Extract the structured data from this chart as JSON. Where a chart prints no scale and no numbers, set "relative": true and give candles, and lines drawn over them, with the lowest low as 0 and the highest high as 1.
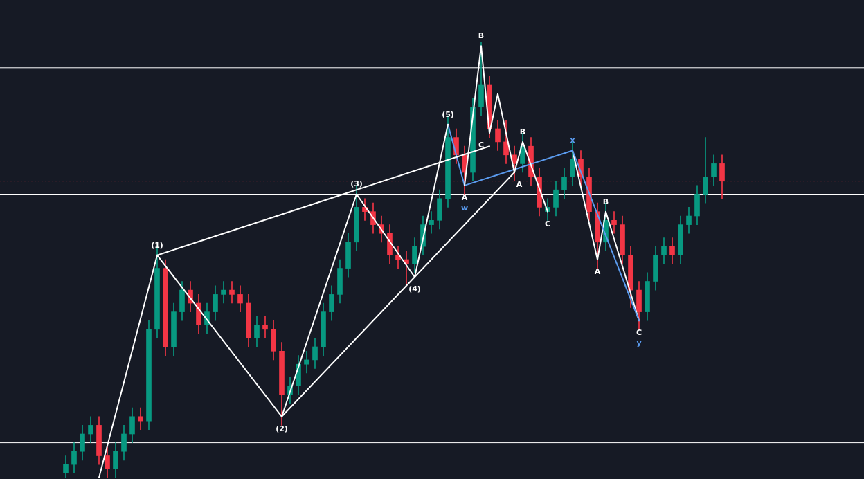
{
  "chart_data": {
    "type": "candlestick",
    "relative": true,
    "legend": false,
    "categories": [
      null,
      null,
      null,
      null,
      null,
      null,
      null,
      null,
      null,
      null,
      null,
      null,
      null,
      null,
      null,
      null,
      null,
      null,
      null,
      null,
      null,
      null,
      null,
      null,
      null,
      null,
      null,
      null,
      null,
      null,
      null,
      null,
      null,
      null,
      null,
      null,
      null,
      null,
      null,
      null,
      null,
      null,
      null,
      null,
      null,
      null,
      null,
      null,
      null,
      null,
      null,
      null,
      null,
      null,
      null,
      null,
      null,
      null,
      null,
      null,
      null,
      null,
      null,
      null,
      null,
      null,
      null,
      null,
      null,
      null,
      null,
      null,
      null,
      null,
      null,
      null,
      null,
      null,
      null,
      null
    ],
    "ohlc": [
      [
        0.01,
        0.05,
        0,
        0.03
      ],
      [
        0.03,
        0.08,
        0.01,
        0.06
      ],
      [
        0.06,
        0.12,
        0.04,
        0.1
      ],
      [
        0.1,
        0.14,
        0.08,
        0.12
      ],
      [
        0.12,
        0.14,
        0.03,
        0.05
      ],
      [
        0.05,
        0.07,
        0,
        0.02
      ],
      [
        0.02,
        0.08,
        0,
        0.06
      ],
      [
        0.06,
        0.12,
        0.04,
        0.1
      ],
      [
        0.1,
        0.16,
        0.08,
        0.14
      ],
      [
        0.14,
        0.16,
        0.11,
        0.13
      ],
      [
        0.13,
        0.36,
        0.11,
        0.34
      ],
      [
        0.34,
        0.53,
        0.32,
        0.48
      ],
      [
        0.48,
        0.5,
        0.28,
        0.3
      ],
      [
        0.3,
        0.4,
        0.28,
        0.38
      ],
      [
        0.38,
        0.45,
        0.36,
        0.43
      ],
      [
        0.43,
        0.45,
        0.38,
        0.4
      ],
      [
        0.4,
        0.42,
        0.33,
        0.35
      ],
      [
        0.35,
        0.4,
        0.33,
        0.38
      ],
      [
        0.38,
        0.44,
        0.36,
        0.42
      ],
      [
        0.42,
        0.45,
        0.4,
        0.43
      ],
      [
        0.43,
        0.45,
        0.4,
        0.42
      ],
      [
        0.42,
        0.44,
        0.38,
        0.4
      ],
      [
        0.4,
        0.42,
        0.3,
        0.32
      ],
      [
        0.32,
        0.37,
        0.3,
        0.35
      ],
      [
        0.35,
        0.37,
        0.32,
        0.34
      ],
      [
        0.34,
        0.36,
        0.27,
        0.29
      ],
      [
        0.29,
        0.31,
        0.12,
        0.19
      ],
      [
        0.19,
        0.23,
        0.17,
        0.21
      ],
      [
        0.21,
        0.28,
        0.19,
        0.26
      ],
      [
        0.26,
        0.29,
        0.24,
        0.27
      ],
      [
        0.27,
        0.32,
        0.25,
        0.3
      ],
      [
        0.3,
        0.4,
        0.28,
        0.38
      ],
      [
        0.38,
        0.44,
        0.36,
        0.42
      ],
      [
        0.42,
        0.5,
        0.4,
        0.48
      ],
      [
        0.48,
        0.56,
        0.46,
        0.54
      ],
      [
        0.54,
        0.67,
        0.52,
        0.62
      ],
      [
        0.62,
        0.64,
        0.59,
        0.61
      ],
      [
        0.61,
        0.63,
        0.56,
        0.58
      ],
      [
        0.58,
        0.6,
        0.54,
        0.56
      ],
      [
        0.56,
        0.58,
        0.49,
        0.51
      ],
      [
        0.51,
        0.53,
        0.48,
        0.5
      ],
      [
        0.5,
        0.52,
        0.44,
        0.49
      ],
      [
        0.49,
        0.55,
        0.47,
        0.53
      ],
      [
        0.53,
        0.6,
        0.51,
        0.58
      ],
      [
        0.58,
        0.61,
        0.56,
        0.59
      ],
      [
        0.59,
        0.66,
        0.57,
        0.64
      ],
      [
        0.64,
        0.83,
        0.62,
        0.78
      ],
      [
        0.78,
        0.8,
        0.72,
        0.74
      ],
      [
        0.74,
        0.76,
        0.65,
        0.7
      ],
      [
        0.7,
        0.87,
        0.68,
        0.85
      ],
      [
        0.85,
        1,
        0.83,
        0.9
      ],
      [
        0.9,
        0.92,
        0.78,
        0.8
      ],
      [
        0.8,
        0.82,
        0.75,
        0.77
      ],
      [
        0.77,
        0.82,
        0.72,
        0.74
      ],
      [
        0.74,
        0.76,
        0.68,
        0.72
      ],
      [
        0.72,
        0.79,
        0.7,
        0.76
      ],
      [
        0.76,
        0.78,
        0.67,
        0.69
      ],
      [
        0.69,
        0.71,
        0.6,
        0.62
      ],
      [
        0.61,
        0.64,
        0.59,
        0.62
      ],
      [
        0.62,
        0.68,
        0.6,
        0.66
      ],
      [
        0.66,
        0.71,
        0.64,
        0.69
      ],
      [
        0.69,
        0.77,
        0.67,
        0.73
      ],
      [
        0.73,
        0.75,
        0.67,
        0.69
      ],
      [
        0.69,
        0.71,
        0.59,
        0.61
      ],
      [
        0.61,
        0.63,
        0.48,
        0.54
      ],
      [
        0.54,
        0.63,
        0.52,
        0.59
      ],
      [
        0.59,
        0.61,
        0.56,
        0.58
      ],
      [
        0.58,
        0.6,
        0.49,
        0.51
      ],
      [
        0.51,
        0.53,
        0.39,
        0.43
      ],
      [
        0.43,
        0.45,
        0.34,
        0.38
      ],
      [
        0.38,
        0.47,
        0.36,
        0.45
      ],
      [
        0.45,
        0.53,
        0.43,
        0.51
      ],
      [
        0.51,
        0.55,
        0.49,
        0.53
      ],
      [
        0.53,
        0.55,
        0.49,
        0.51
      ],
      [
        0.51,
        0.6,
        0.49,
        0.58
      ],
      [
        0.58,
        0.62,
        0.56,
        0.6
      ],
      [
        0.6,
        0.67,
        0.58,
        0.65
      ],
      [
        0.65,
        0.78,
        0.63,
        0.69
      ],
      [
        0.69,
        0.74,
        0.67,
        0.72
      ],
      [
        0.72,
        0.74,
        0.64,
        0.68
      ]
    ],
    "colors": [
      "#089981",
      "#089981",
      "#089981",
      "#089981",
      "#f23645",
      "#f23645",
      "#089981",
      "#089981",
      "#089981",
      "#f23645",
      "#089981",
      "#089981",
      "#f23645",
      "#089981",
      "#089981",
      "#f23645",
      "#f23645",
      "#089981",
      "#089981",
      "#089981",
      "#f23645",
      "#f23645",
      "#f23645",
      "#089981",
      "#f23645",
      "#f23645",
      "#f23645",
      "#089981",
      "#089981",
      "#089981",
      "#089981",
      "#089981",
      "#089981",
      "#089981",
      "#089981",
      "#089981",
      "#f23645",
      "#f23645",
      "#f23645",
      "#f23645",
      "#f23645",
      "#f23645",
      "#089981",
      "#089981",
      "#089981",
      "#089981",
      "#089981",
      "#f23645",
      "#f23645",
      "#089981",
      "#089981",
      "#f23645",
      "#f23645",
      "#f23645",
      "#f23645",
      "#089981",
      "#f23645",
      "#f23645",
      "#089981",
      "#089981",
      "#089981",
      "#089981",
      "#f23645",
      "#f23645",
      "#f23645",
      "#089981",
      "#f23645",
      "#f23645",
      "#f23645",
      "#f23645",
      "#089981",
      "#089981",
      "#089981",
      "#f23645",
      "#089981",
      "#089981",
      "#089981",
      "#089981",
      "#089981",
      "#f23645"
    ],
    "series": [
      {
        "type": "line",
        "color": "#ffffff",
        "values": [
          null,
          null,
          null,
          null,
          0,
          null,
          null,
          null,
          null,
          null,
          null,
          0.51,
          null,
          null,
          null,
          null,
          null,
          null,
          null,
          null,
          null,
          null,
          null,
          null,
          null,
          null,
          0.14,
          null,
          null,
          null,
          null,
          null,
          null,
          null,
          null,
          0.65,
          null,
          null,
          null,
          null,
          null,
          null,
          0.46,
          null,
          null,
          null,
          0.81,
          null,
          null,
          null,
          null,
          null,
          null,
          null,
          null,
          null,
          null,
          null,
          null,
          null,
          null,
          null,
          null,
          null,
          null,
          null,
          null,
          null,
          null,
          null,
          null,
          null,
          null,
          null,
          null,
          null,
          null,
          null,
          null,
          null
        ]
      },
      {
        "type": "line",
        "color": "#ffffff",
        "values": [
          null,
          null,
          null,
          null,
          null,
          null,
          null,
          null,
          null,
          null,
          null,
          0.51,
          null,
          null,
          null,
          null,
          null,
          null,
          null,
          null,
          null,
          null,
          null,
          null,
          null,
          null,
          null,
          null,
          null,
          null,
          null,
          null,
          null,
          null,
          null,
          null,
          null,
          null,
          null,
          null,
          null,
          null,
          null,
          null,
          null,
          null,
          null,
          null,
          null,
          null,
          null,
          0.76,
          null,
          null,
          null,
          null,
          null,
          null,
          null,
          null,
          null,
          null,
          null,
          null,
          null,
          null,
          null,
          null,
          null,
          null,
          null,
          null,
          null,
          null,
          null,
          null,
          null,
          null,
          null,
          null
        ]
      },
      {
        "type": "line",
        "color": "#ffffff",
        "values": [
          null,
          null,
          null,
          null,
          null,
          null,
          null,
          null,
          null,
          null,
          null,
          null,
          null,
          null,
          null,
          null,
          null,
          null,
          null,
          null,
          null,
          null,
          null,
          null,
          null,
          null,
          0.14,
          null,
          null,
          null,
          null,
          null,
          null,
          null,
          null,
          null,
          null,
          null,
          null,
          null,
          null,
          null,
          null,
          null,
          null,
          null,
          null,
          null,
          null,
          null,
          null,
          null,
          null,
          null,
          0.7,
          null,
          null,
          null,
          null,
          null,
          null,
          null,
          null,
          null,
          null,
          null,
          null,
          null,
          null,
          null,
          null,
          null,
          null,
          null,
          null,
          null,
          null,
          null,
          null,
          null
        ]
      },
      {
        "type": "line",
        "color": "#ffffff",
        "values": [
          null,
          null,
          null,
          null,
          null,
          null,
          null,
          null,
          null,
          null,
          null,
          null,
          null,
          null,
          null,
          null,
          null,
          null,
          null,
          null,
          null,
          null,
          null,
          null,
          null,
          null,
          null,
          null,
          null,
          null,
          null,
          null,
          null,
          null,
          null,
          null,
          null,
          null,
          null,
          null,
          null,
          null,
          null,
          null,
          null,
          null,
          null,
          null,
          0.67,
          null,
          0.99,
          0.79,
          0.88,
          null,
          0.7,
          0.77,
          null,
          null,
          0.61,
          null,
          null,
          null,
          null,
          null,
          null,
          null,
          null,
          null,
          null,
          null,
          null,
          null,
          null,
          null,
          null,
          null,
          null,
          null,
          null,
          null
        ]
      },
      {
        "type": "line",
        "color": "#5b9cf0",
        "values": [
          null,
          null,
          null,
          null,
          null,
          null,
          null,
          null,
          null,
          null,
          null,
          null,
          null,
          null,
          null,
          null,
          null,
          null,
          null,
          null,
          null,
          null,
          null,
          null,
          null,
          null,
          null,
          null,
          null,
          null,
          null,
          null,
          null,
          null,
          null,
          null,
          null,
          null,
          null,
          null,
          null,
          null,
          null,
          null,
          null,
          null,
          0.81,
          null,
          0.67,
          null,
          null,
          null,
          null,
          null,
          null,
          null,
          null,
          null,
          null,
          null,
          null,
          0.75,
          null,
          null,
          null,
          null,
          null,
          null,
          null,
          0.36,
          null,
          null,
          null,
          null,
          null,
          null,
          null,
          null,
          null,
          null
        ]
      },
      {
        "type": "line",
        "color": "#ffffff",
        "values": [
          null,
          null,
          null,
          null,
          null,
          null,
          null,
          null,
          null,
          null,
          null,
          null,
          null,
          null,
          null,
          null,
          null,
          null,
          null,
          null,
          null,
          null,
          null,
          null,
          null,
          null,
          null,
          null,
          null,
          null,
          null,
          null,
          null,
          null,
          null,
          null,
          null,
          null,
          null,
          null,
          null,
          null,
          null,
          null,
          null,
          null,
          null,
          null,
          null,
          null,
          null,
          null,
          null,
          null,
          null,
          null,
          null,
          null,
          null,
          null,
          null,
          0.75,
          null,
          null,
          0.5,
          0.61,
          null,
          null,
          null,
          0.36,
          null,
          null,
          null,
          null,
          null,
          null,
          null,
          null,
          null,
          null
        ]
      }
    ],
    "annotations": [
      "(1)",
      "(2)",
      "(3)",
      "(4)",
      "(5)",
      "A",
      "B",
      "C",
      "A",
      "B",
      "C",
      "A",
      "B",
      "C",
      "w",
      "x",
      "y"
    ],
    "ref_lines": [
      {
        "axis": "y",
        "value": 0.94,
        "color": "#ffffff",
        "line_style": "solid"
      },
      {
        "axis": "y",
        "value": 0.65,
        "color": "#ffffff",
        "line_style": "solid"
      },
      {
        "axis": "y",
        "value": 0.08,
        "color": "#ffffff",
        "line_style": "solid"
      },
      {
        "axis": "y",
        "value": 0.68,
        "color": "#f23645",
        "line_style": "dotted"
      }
    ]
  }
}
